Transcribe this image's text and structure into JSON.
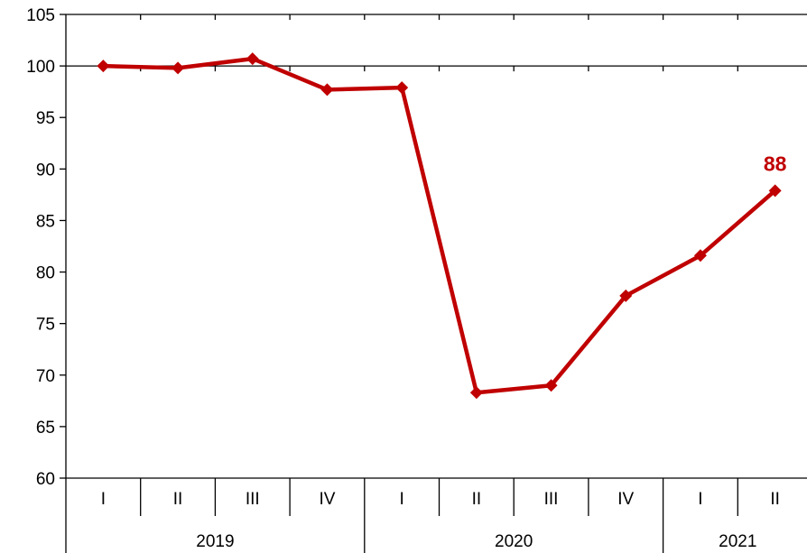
{
  "chart_data": {
    "type": "line",
    "title": "",
    "xlabel": "",
    "ylabel": "",
    "ylim": [
      60,
      105
    ],
    "yticks": [
      60,
      65,
      70,
      75,
      80,
      85,
      90,
      95,
      100,
      105
    ],
    "grid": false,
    "reference_line": 100,
    "categories": [
      "I",
      "II",
      "III",
      "IV",
      "I",
      "II",
      "III",
      "IV",
      "I",
      "II"
    ],
    "groups": [
      {
        "label": "2019",
        "count": 4
      },
      {
        "label": "2020",
        "count": 4
      },
      {
        "label": "2021",
        "count": 2
      }
    ],
    "series": [
      {
        "color": "#c00000",
        "values": [
          100,
          99.8,
          100.7,
          97.7,
          97.9,
          68.3,
          69.0,
          77.7,
          81.6,
          87.9
        ]
      }
    ],
    "annotations": [
      {
        "point_index": 9,
        "text": "88",
        "color": "#c00000"
      }
    ]
  }
}
